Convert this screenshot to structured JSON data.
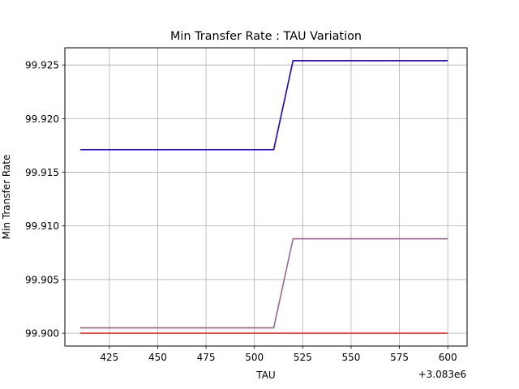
{
  "chart_data": {
    "type": "line",
    "title": "Min Transfer Rate : TAU Variation",
    "xlabel": "TAU",
    "ylabel": "Min Transfer Rate",
    "x_offset_label": "+3.083e6",
    "x_offset": 3083000,
    "xlim": [
      3083402,
      3083610
    ],
    "ylim": [
      99.8988,
      99.9266
    ],
    "x_ticks": [
      425,
      450,
      475,
      500,
      525,
      550,
      575,
      600
    ],
    "x_tick_labels": [
      "425",
      "450",
      "475",
      "500",
      "525",
      "550",
      "575",
      "600"
    ],
    "y_ticks": [
      99.9,
      99.905,
      99.91,
      99.915,
      99.92,
      99.925
    ],
    "y_tick_labels": [
      "99.900",
      "99.905",
      "99.910",
      "99.915",
      "99.920",
      "99.925"
    ],
    "grid": true,
    "series": [
      {
        "color": "#ff0000",
        "x": [
          3083410,
          3083510,
          3083520,
          3083600
        ],
        "y": [
          99.9,
          99.9,
          99.9,
          99.9
        ]
      },
      {
        "color": "#2ca02c",
        "x": [
          3083410,
          3083510,
          3083520,
          3083600
        ],
        "y": [
          99.9005,
          99.9005,
          99.9088,
          99.9088
        ]
      },
      {
        "color": "#ff7f0e",
        "x": [
          3083410,
          3083510,
          3083520,
          3083600
        ],
        "y": [
          99.9005,
          99.9005,
          99.9088,
          99.9088
        ]
      },
      {
        "color": "#9467bd",
        "x": [
          3083410,
          3083510,
          3083520,
          3083600
        ],
        "y": [
          99.9005,
          99.9005,
          99.9088,
          99.9088
        ]
      },
      {
        "color": "#1f77b4",
        "x": [
          3083410,
          3083510,
          3083520,
          3083600
        ],
        "y": [
          99.9171,
          99.9171,
          99.9254,
          99.9254
        ]
      },
      {
        "color": "#ff0000",
        "x": [
          3083410,
          3083510,
          3083520,
          3083600
        ],
        "y": [
          99.9171,
          99.9171,
          99.9254,
          99.9254
        ]
      },
      {
        "color": "#0000ff",
        "x": [
          3083410,
          3083510,
          3083520,
          3083600
        ],
        "y": [
          99.9171,
          99.9171,
          99.9254,
          99.9254
        ]
      }
    ]
  }
}
